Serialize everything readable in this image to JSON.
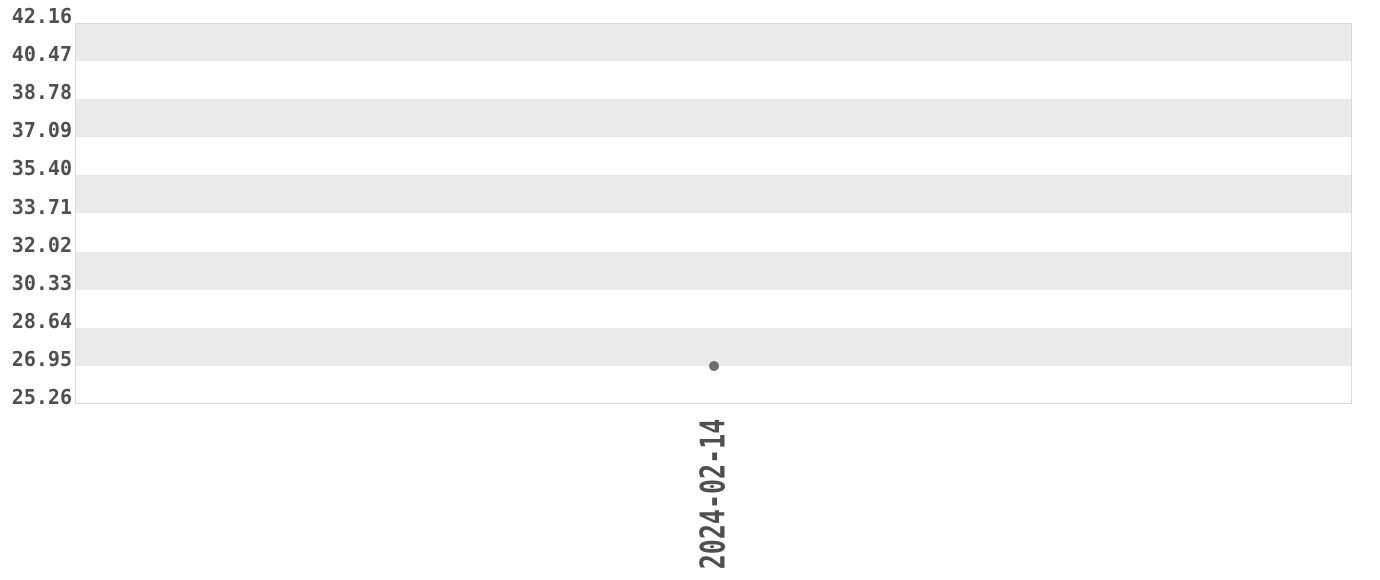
{
  "chart_data": {
    "type": "scatter",
    "title": "",
    "xlabel": "",
    "ylabel": "",
    "x_tick_labels": [
      "2024-02-14"
    ],
    "y_tick_labels": [
      "42.16",
      "40.47",
      "38.78",
      "37.09",
      "35.40",
      "33.71",
      "32.02",
      "30.33",
      "28.64",
      "26.95",
      "25.26"
    ],
    "ylim": [
      25.26,
      42.16
    ],
    "y_tick_step": 1.69,
    "points": [
      {
        "x": "2024-02-14",
        "y": 26.95
      }
    ],
    "legend": "none",
    "grid": "alternating-horizontal-bands",
    "colors": {
      "background": "#ffffff",
      "band": "#eaeaea",
      "point": "#6d6d6d",
      "tick_text": "#4f4f4f",
      "plot_border": "#dadada"
    }
  }
}
